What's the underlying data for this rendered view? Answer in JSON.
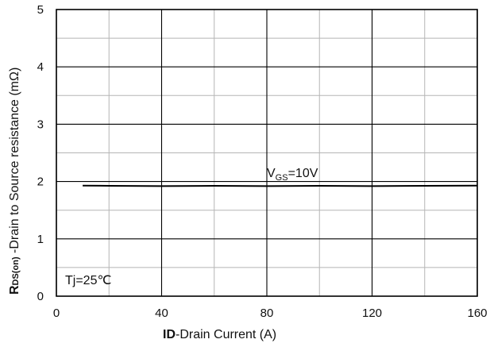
{
  "chart_data": {
    "type": "line",
    "xlabel": {
      "bold": "ID",
      "rest": "-Drain Current  (A)"
    },
    "ylabel": {
      "r": "R",
      "sub": "DS(on)",
      "rest": " -Drain to Source resistance (mΩ)"
    },
    "xlim": [
      0,
      160
    ],
    "ylim": [
      0,
      5
    ],
    "x_major_ticks": [
      0,
      40,
      80,
      120,
      160
    ],
    "y_major_ticks": [
      0,
      1,
      2,
      3,
      4,
      5
    ],
    "x_tick_labels": [
      "0",
      "40",
      "80",
      "120",
      "160"
    ],
    "y_tick_labels": [
      "0",
      "1",
      "2",
      "3",
      "4",
      "5"
    ],
    "x_minor_ticks": [
      20,
      60,
      100,
      140
    ],
    "y_minor_ticks": [
      0.5,
      1.5,
      2.5,
      3.5,
      4.5
    ],
    "grid": true,
    "series": [
      {
        "name": "",
        "color": "#000000",
        "x": [
          10,
          20,
          40,
          60,
          80,
          100,
          120,
          140,
          160
        ],
        "y": [
          1.93,
          1.925,
          1.92,
          1.925,
          1.92,
          1.925,
          1.92,
          1.925,
          1.93
        ]
      }
    ],
    "annotations": {
      "vgs": {
        "prefix": "V",
        "sub": "GS",
        "suffix": "=10V"
      },
      "tj": "Tj=25℃"
    }
  }
}
